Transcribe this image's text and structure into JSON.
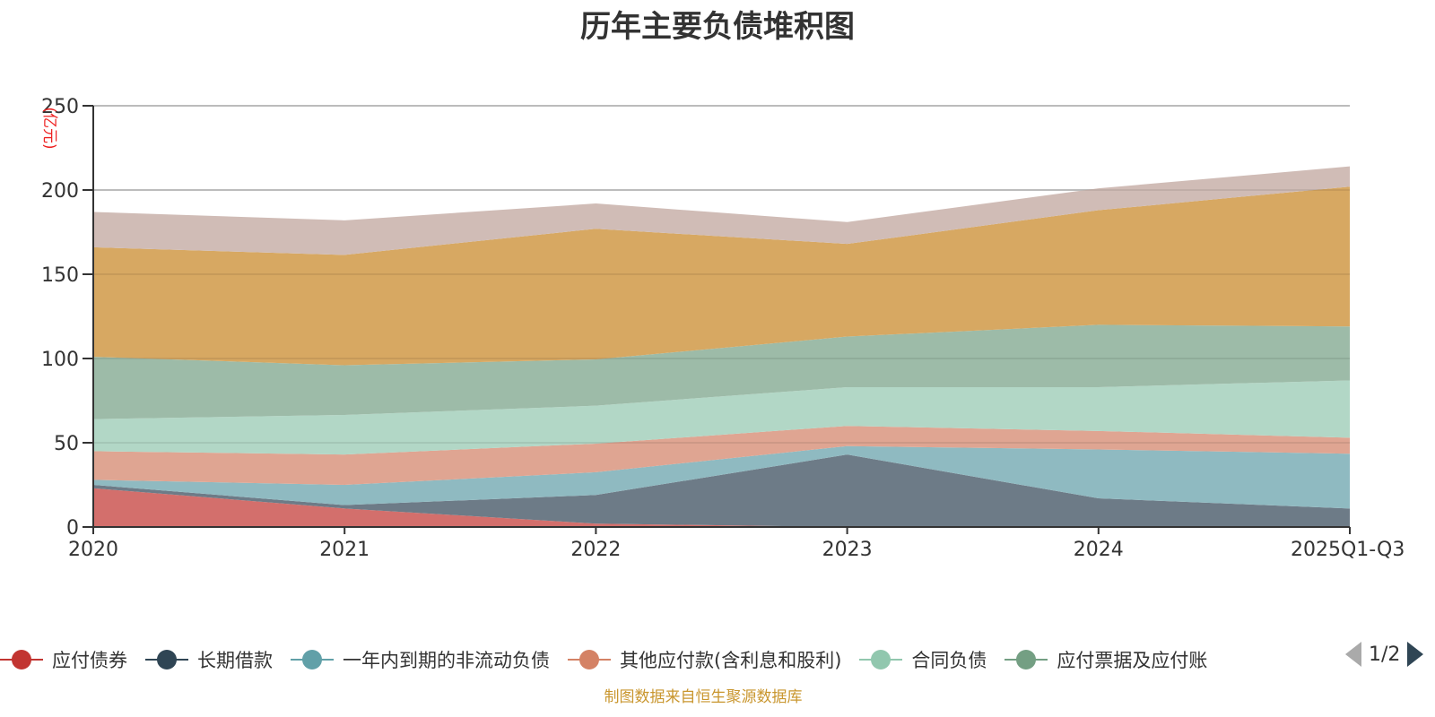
{
  "title": "历年主要负债堆积图",
  "source_note": "制图数据来自恒生聚源数据库",
  "legend_pager": {
    "text": "1/2",
    "prev_icon": "triangle-left-icon",
    "next_icon": "triangle-right-icon"
  },
  "chart_data": {
    "type": "area",
    "stacked": true,
    "title": "历年主要负债堆积图",
    "ylabel": "(亿元)",
    "xlabel": "",
    "ylim": [
      0,
      250
    ],
    "yticks": [
      0,
      50,
      100,
      150,
      200,
      250
    ],
    "grid": true,
    "legend_position": "bottom",
    "categories": [
      "2020",
      "2021",
      "2022",
      "2023",
      "2024",
      "2025Q1-Q3"
    ],
    "series": [
      {
        "name": "应付债券",
        "color": "#c23531",
        "fill": "#d36f6c",
        "values": [
          23,
          11,
          2,
          0,
          0,
          0
        ]
      },
      {
        "name": "长期借款",
        "color": "#2f4554",
        "fill": "#6d7b87",
        "values": [
          2,
          2,
          17,
          43,
          17,
          11
        ]
      },
      {
        "name": "一年内到期的非流动负债",
        "color": "#61a0a8",
        "fill": "#8fbac1",
        "values": [
          3,
          12,
          13.5,
          5,
          29,
          32.5
        ]
      },
      {
        "name": "其他应付款(含利息和股利)",
        "color": "#d48265",
        "fill": "#dfa592",
        "values": [
          17,
          18,
          17,
          12,
          11,
          9.5
        ]
      },
      {
        "name": "合同负债",
        "color": "#91c7ae",
        "fill": "#b2d7c6",
        "values": [
          19,
          23.5,
          22.5,
          23,
          26,
          34
        ]
      },
      {
        "name": "应付票据及应付账款",
        "color": "#749f83",
        "fill": "#9dbba8",
        "values": [
          37,
          29.5,
          27.5,
          30,
          37,
          32
        ]
      },
      {
        "name": "",
        "color": "#ca8622",
        "fill": "#d7a862",
        "values": [
          65,
          65.5,
          77.5,
          55,
          68,
          83
        ]
      },
      {
        "name": "",
        "color": "#bda29a",
        "fill": "#d0bcb6",
        "values": [
          21,
          20.5,
          15,
          13,
          13,
          12
        ]
      }
    ],
    "visible_legend_entries": [
      "应付债券",
      "长期借款",
      "一年内到期的非流动负债",
      "其他应付款(含利息和股利)",
      "合同负债",
      "应付票据及应付账"
    ]
  }
}
